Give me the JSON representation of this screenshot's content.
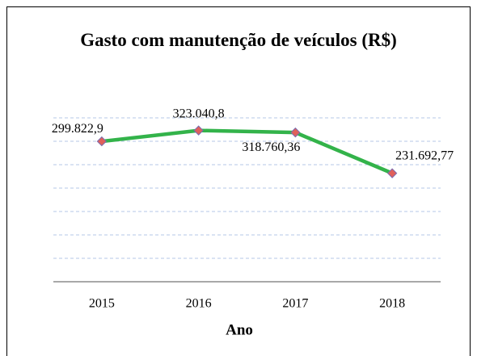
{
  "chart_data": {
    "type": "line",
    "title": "Gasto com manutenção de veículos (R$)",
    "x_label": "Ano",
    "categories": [
      "2015",
      "2016",
      "2017",
      "2018"
    ],
    "values": [
      299822.9,
      323040.8,
      318760.36,
      231692.77
    ],
    "value_labels": [
      "299.822,9",
      "323.040,8",
      "318.760,36",
      "231.692,77"
    ],
    "color": "#33b34a",
    "marker_color": "#e0605a",
    "ylim": [
      0,
      350000
    ],
    "yticks": [
      50000,
      100000,
      150000,
      200000,
      250000,
      300000,
      350000
    ],
    "grid": true
  }
}
